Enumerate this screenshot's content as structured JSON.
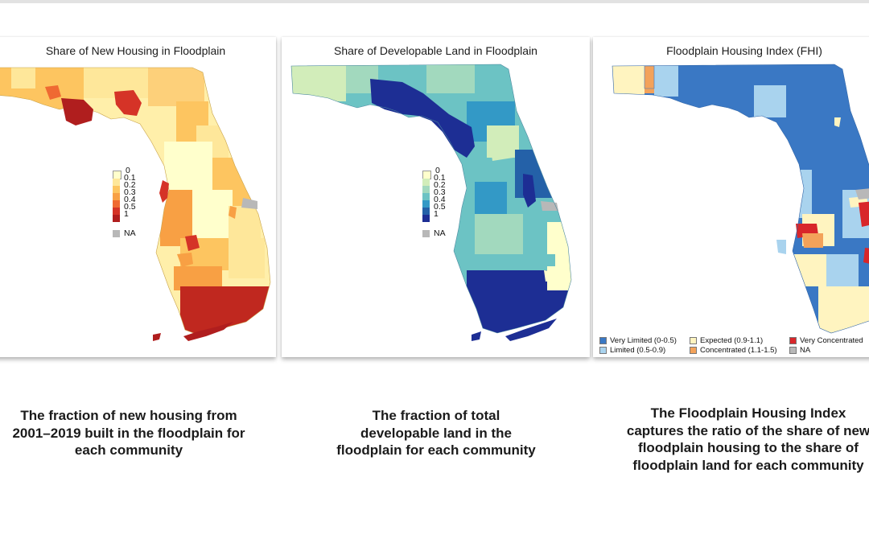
{
  "panels": [
    {
      "title": "Share of New Housing in Floodplain",
      "legend": {
        "items": [
          {
            "label": "0",
            "color": "#ffffcc"
          },
          {
            "label": "0.1",
            "color": "#fee79a"
          },
          {
            "label": "0.2",
            "color": "#fdc560"
          },
          {
            "label": "0.3",
            "color": "#f8a044"
          },
          {
            "label": "0.4",
            "color": "#ef6a32"
          },
          {
            "label": "0.5",
            "color": "#d53327"
          },
          {
            "label": "1",
            "color": "#b01e1e"
          }
        ],
        "na_label": "NA",
        "na_color": "#b8b8b8"
      },
      "caption": [
        "The fraction of new housing from",
        "2001–2019 built in the floodplain for",
        "each community"
      ]
    },
    {
      "title": "Share of Developable Land in Floodplain",
      "legend": {
        "items": [
          {
            "label": "0",
            "color": "#ffffcc"
          },
          {
            "label": "0.1",
            "color": "#d2edba"
          },
          {
            "label": "0.2",
            "color": "#a2d9be"
          },
          {
            "label": "0.3",
            "color": "#6cc3c4"
          },
          {
            "label": "0.4",
            "color": "#3399c6"
          },
          {
            "label": "0.5",
            "color": "#2461a8"
          },
          {
            "label": "1",
            "color": "#1d2e94"
          }
        ],
        "na_label": "NA",
        "na_color": "#b8b8b8"
      },
      "caption": [
        "The fraction of total",
        "developable land in the",
        "floodplain for each community"
      ]
    },
    {
      "title": "Floodplain Housing Index (FHI)",
      "legend": {
        "items": [
          {
            "label": "Very Limited (0-0.5)",
            "color": "#3a78c4"
          },
          {
            "label": "Limited (0.5-0.9)",
            "color": "#a9d3ee"
          },
          {
            "label": "Expected (0.9-1.1)",
            "color": "#fff4c0"
          },
          {
            "label": "Concentrated (1.1-1.5)",
            "color": "#f3a25a"
          },
          {
            "label": "Very Concentrated",
            "color": "#d8262a"
          },
          {
            "label": "NA",
            "color": "#b8b8b8"
          }
        ]
      },
      "caption": [
        "The Floodplain Housing Index",
        "captures the ratio of the share of new",
        "floodplain housing to the share of",
        "floodplain land for each community"
      ]
    }
  ]
}
